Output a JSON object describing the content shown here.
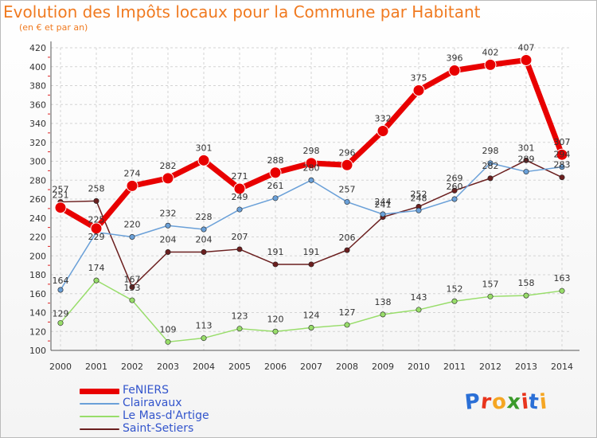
{
  "header": {
    "title": "Evolution des Impôts locaux pour la Commune par Habitant",
    "subtitle": "(en € et par an)"
  },
  "logo": {
    "text": "Proxiti",
    "colors": [
      "#2a6fd6",
      "#e8341c",
      "#f5a623",
      "#3a9a2a",
      "#e8341c",
      "#2a6fd6",
      "#f5a623"
    ]
  },
  "chart_data": {
    "type": "line",
    "x": [
      2000,
      2001,
      2002,
      2003,
      2004,
      2005,
      2006,
      2007,
      2008,
      2009,
      2010,
      2011,
      2012,
      2013,
      2014
    ],
    "ylim": [
      100,
      420
    ],
    "yticks": [
      100,
      120,
      140,
      160,
      180,
      200,
      220,
      240,
      260,
      280,
      300,
      320,
      340,
      360,
      380,
      400,
      420
    ],
    "grid": true,
    "legend_position": "bottom-left",
    "series": [
      {
        "name": "FeNIERS",
        "color": "#e80000",
        "values": [
          251,
          229,
          274,
          282,
          301,
          271,
          288,
          298,
          296,
          332,
          375,
          396,
          402,
          407,
          307
        ]
      },
      {
        "name": "Clairavaux",
        "color": "#6aa0d8",
        "values": [
          164,
          225,
          220,
          232,
          228,
          249,
          261,
          280,
          257,
          244,
          248,
          260,
          298,
          289,
          294
        ]
      },
      {
        "name": "Le Mas-d'Artige",
        "color": "#98dd6a",
        "values": [
          129,
          174,
          153,
          109,
          113,
          123,
          120,
          124,
          127,
          138,
          143,
          152,
          157,
          158,
          163
        ]
      },
      {
        "name": "Saint-Setiers",
        "color": "#6b1f1f",
        "values": [
          257,
          258,
          167,
          204,
          204,
          207,
          191,
          191,
          206,
          241,
          252,
          269,
          282,
          301,
          283
        ]
      }
    ]
  }
}
